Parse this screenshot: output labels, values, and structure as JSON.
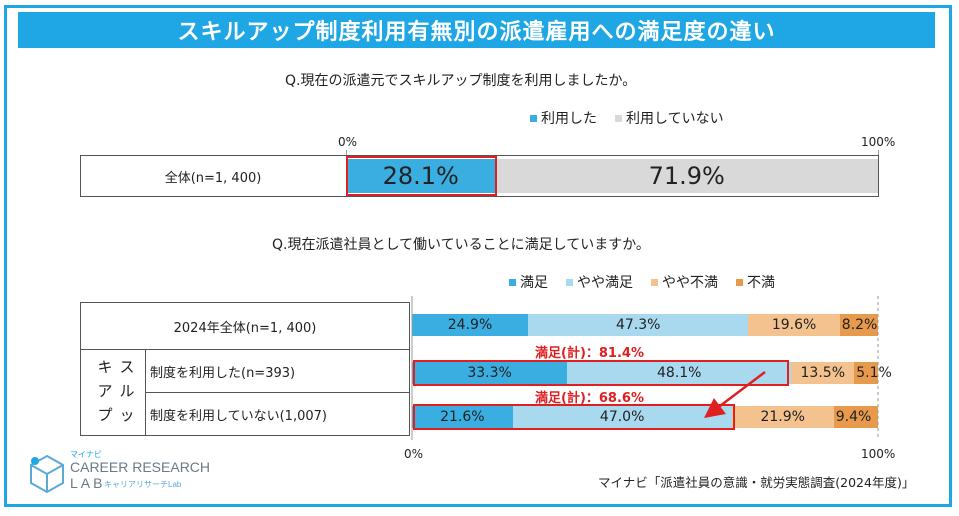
{
  "title": "スキルアップ制度利用有無別の派遣雇用への満足度の違い",
  "q1": "Q.現在の派遣元でスキルアップ制度を利用しましたか。",
  "q2": "Q.現在派遣社員として働いていることに満足していますか。",
  "axis": {
    "min_label": "0%",
    "max_label": "100%"
  },
  "group_label": "スキルアップ",
  "sum_notes": [
    "満足(計)：81.4%",
    "満足(計)：68.6%"
  ],
  "source": "マイナビ「派遣社員の意識・就労実態調査(2024年度)」",
  "logo": {
    "brand_small": "マイナビ",
    "line1": "CAREER RESEARCH",
    "line2": "LAB",
    "sub": "キャリアリサーチLab"
  },
  "colors": {
    "title_bg": "#1ea7e4",
    "used": "#3aaee0",
    "not_used": "#d9d9d9",
    "satisfied": "#3aaee0",
    "somewhat_satisfied": "#a9d9ef",
    "somewhat_dissatisfied": "#f3c28f",
    "dissatisfied": "#e89a4c",
    "highlight": "#e02020"
  },
  "chart_data": [
    {
      "type": "bar",
      "orientation": "horizontal-stacked-100",
      "legend": [
        "利用した",
        "利用していない"
      ],
      "legend_position": "top-right",
      "categories": [
        "全体(n=1, 400)"
      ],
      "series": [
        {
          "name": "利用した",
          "values": [
            28.1
          ],
          "labels": [
            "28.1%"
          ]
        },
        {
          "name": "利用していない",
          "values": [
            71.9
          ],
          "labels": [
            "71.9%"
          ]
        }
      ],
      "xlim": [
        0,
        100
      ]
    },
    {
      "type": "bar",
      "orientation": "horizontal-stacked-100",
      "legend": [
        "満足",
        "やや満足",
        "やや不満",
        "不満"
      ],
      "legend_position": "top-right",
      "categories": [
        "2024年全体(n=1, 400)",
        "制度を利用した(n=393)",
        "制度を利用していない(1,007)"
      ],
      "series": [
        {
          "name": "満足",
          "values": [
            24.9,
            33.3,
            21.6
          ],
          "labels": [
            "24.9%",
            "33.3%",
            "21.6%"
          ]
        },
        {
          "name": "やや満足",
          "values": [
            47.3,
            48.1,
            47.0
          ],
          "labels": [
            "47.3%",
            "48.1%",
            "47.0%"
          ]
        },
        {
          "name": "やや不満",
          "values": [
            19.6,
            13.5,
            21.9
          ],
          "labels": [
            "19.6%",
            "13.5%",
            "21.9%"
          ]
        },
        {
          "name": "不満",
          "values": [
            8.2,
            5.1,
            9.4
          ],
          "labels": [
            "8.2%",
            "5.1%",
            "9.4%"
          ]
        }
      ],
      "xlim": [
        0,
        100
      ]
    }
  ]
}
